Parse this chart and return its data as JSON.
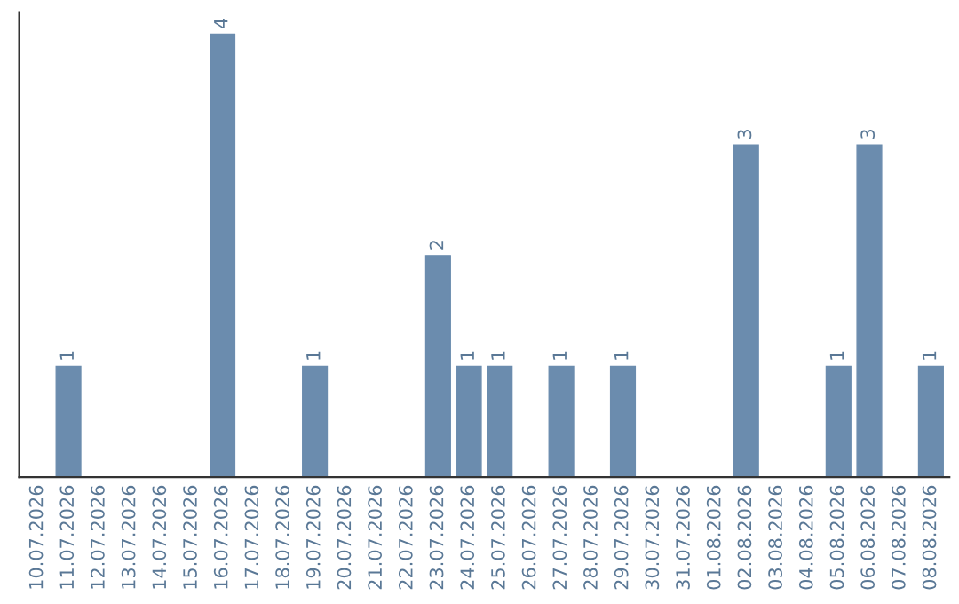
{
  "chart_data": {
    "type": "bar",
    "categories": [
      "10.07.2026",
      "11.07.2026",
      "12.07.2026",
      "13.07.2026",
      "14.07.2026",
      "15.07.2026",
      "16.07.2026",
      "17.07.2026",
      "18.07.2026",
      "19.07.2026",
      "20.07.2026",
      "21.07.2026",
      "22.07.2026",
      "23.07.2026",
      "24.07.2026",
      "25.07.2026",
      "26.07.2026",
      "27.07.2026",
      "28.07.2026",
      "29.07.2026",
      "30.07.2026",
      "31.07.2026",
      "01.08.2026",
      "02.08.2026",
      "03.08.2026",
      "04.08.2026",
      "05.08.2026",
      "06.08.2026",
      "07.08.2026",
      "08.08.2026"
    ],
    "values": [
      0,
      1,
      0,
      0,
      0,
      0,
      4,
      0,
      0,
      1,
      0,
      0,
      0,
      2,
      1,
      1,
      0,
      1,
      0,
      1,
      0,
      0,
      0,
      3,
      0,
      0,
      1,
      3,
      0,
      1
    ],
    "value_labels": [
      null,
      "1",
      null,
      null,
      null,
      null,
      "4",
      null,
      null,
      "1",
      null,
      null,
      null,
      "2",
      "1",
      "1",
      null,
      "1",
      null,
      "1",
      null,
      null,
      null,
      "3",
      null,
      null,
      "1",
      "3",
      null,
      "1"
    ],
    "color": "#6b8cae",
    "ylim": [
      0,
      4.2
    ],
    "tick_labels": "x",
    "grid": false,
    "legend": false
  }
}
